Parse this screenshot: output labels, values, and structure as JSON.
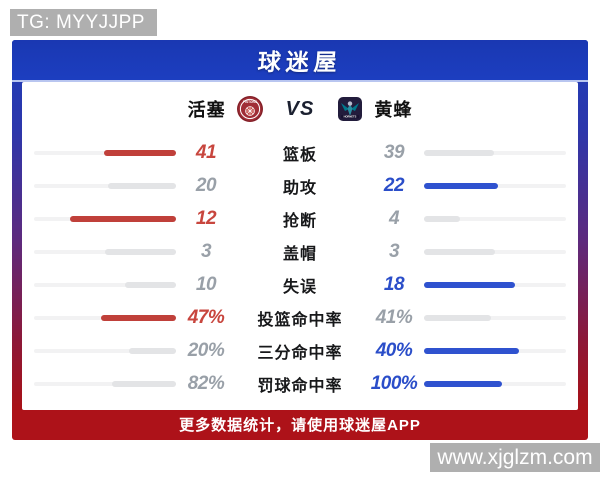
{
  "watermarks": {
    "tg": "TG: MYYJJPP",
    "site": "www.xjglzm.com"
  },
  "header": {
    "logo_text": "球迷屋"
  },
  "teams": {
    "home": {
      "name": "活塞",
      "logo": "pistons-logo"
    },
    "away": {
      "name": "黄蜂",
      "logo": "hornets-logo"
    },
    "vs_label": "VS"
  },
  "colors": {
    "accent_red": "#c0403a",
    "accent_blue": "#2f52cf",
    "neutral_gray": "#99a0a8",
    "bar_track": "#f2f2f3",
    "bar_loser": "#e3e4e6",
    "header_blue": "#1c3ec0",
    "footer_red": "#ad1219"
  },
  "stats": {
    "rows": [
      {
        "label": "篮板",
        "left": "41",
        "right": "39",
        "winner": "left",
        "left_pct": 51,
        "right_pct": 49
      },
      {
        "label": "助攻",
        "left": "20",
        "right": "22",
        "winner": "right",
        "left_pct": 48,
        "right_pct": 52
      },
      {
        "label": "抢断",
        "left": "12",
        "right": "4",
        "winner": "left",
        "left_pct": 75,
        "right_pct": 25
      },
      {
        "label": "盖帽",
        "left": "3",
        "right": "3",
        "winner": "none",
        "left_pct": 50,
        "right_pct": 50
      },
      {
        "label": "失误",
        "left": "10",
        "right": "18",
        "winner": "right",
        "left_pct": 36,
        "right_pct": 64
      },
      {
        "label": "投篮命中率",
        "left": "47%",
        "right": "41%",
        "winner": "left",
        "left_pct": 53,
        "right_pct": 47
      },
      {
        "label": "三分命中率",
        "left": "20%",
        "right": "40%",
        "winner": "right",
        "left_pct": 33,
        "right_pct": 67
      },
      {
        "label": "罚球命中率",
        "left": "82%",
        "right": "100%",
        "winner": "right",
        "left_pct": 45,
        "right_pct": 55
      }
    ]
  },
  "footer": {
    "text": "更多数据统计，请使用球迷屋APP"
  }
}
